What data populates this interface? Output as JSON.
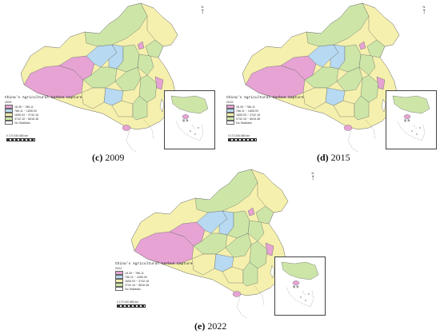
{
  "legend": {
    "title": "China's Agricultural Carbon Capture",
    "classes": [
      {
        "label": "18.35 ~ 786.11",
        "color": "#e6a3d3"
      },
      {
        "label": "786.11 ~ 1655.93",
        "color": "#b7daf2"
      },
      {
        "label": "1655.93 ~ 3742.16",
        "color": "#f5f0ad"
      },
      {
        "label": "3742.16 ~ 6816.38",
        "color": "#cde6a8"
      },
      {
        "label": "No Statistics",
        "color": "#ffffff"
      }
    ],
    "scale": "0   170 340        680 km",
    "north_label": "N",
    "inset_label": "南 海"
  },
  "panels": [
    {
      "id": "c",
      "letter": "(c)",
      "year": "2009"
    },
    {
      "id": "d",
      "letter": "(d)",
      "year": "2015"
    },
    {
      "id": "e",
      "letter": "(e)",
      "year": "2022"
    }
  ]
}
